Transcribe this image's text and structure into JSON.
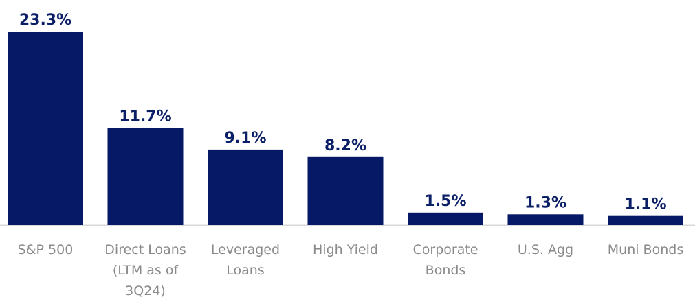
{
  "chart_data": {
    "type": "bar",
    "title": "",
    "xlabel": "",
    "ylabel": "",
    "ylim": [
      0,
      23.3
    ],
    "grid": false,
    "legend": "none",
    "bar_color": "#051966",
    "baseline_color": "#d9d9d9",
    "value_label_color": "#0b1f66",
    "category_label_color": "#8a8a8a",
    "categories": [
      [
        "S&P 500"
      ],
      [
        "Direct Loans",
        "(LTM as of",
        "3Q24)"
      ],
      [
        "Leveraged",
        "Loans"
      ],
      [
        "High Yield"
      ],
      [
        "Corporate",
        "Bonds"
      ],
      [
        "U.S. Agg"
      ],
      [
        "Muni Bonds"
      ]
    ],
    "values": [
      23.3,
      11.7,
      9.1,
      8.2,
      1.5,
      1.3,
      1.1
    ],
    "value_labels": [
      "23.3%",
      "11.7%",
      "9.1%",
      "8.2%",
      "1.5%",
      "1.3%",
      "1.1%"
    ]
  }
}
